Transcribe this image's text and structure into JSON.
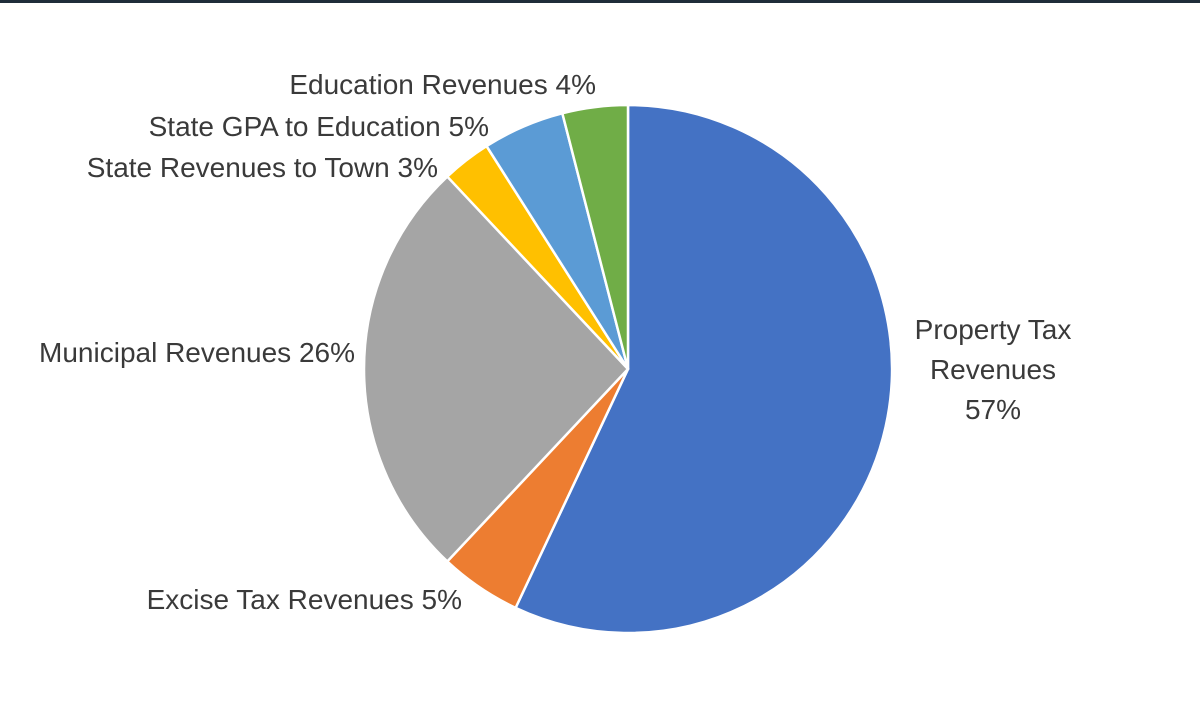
{
  "chart_data": {
    "type": "pie",
    "title": "",
    "legend": "none",
    "start_angle_deg": 0,
    "direction": "clockwise",
    "slices": [
      {
        "name": "Property Tax Revenues",
        "value": 57,
        "label_lines": [
          "Property Tax",
          "Revenues",
          "57%"
        ],
        "color": "#4472C4"
      },
      {
        "name": "Excise Tax Revenues",
        "value": 5,
        "label_lines": [
          "Excise Tax Revenues 5%"
        ],
        "color": "#ED7D31"
      },
      {
        "name": "Municipal Revenues",
        "value": 26,
        "label_lines": [
          "Municipal Revenues 26%"
        ],
        "color": "#A5A5A5"
      },
      {
        "name": "State Revenues to Town",
        "value": 3,
        "label_lines": [
          "State Revenues to Town 3%"
        ],
        "color": "#FFC000"
      },
      {
        "name": "State GPA to Education",
        "value": 5,
        "label_lines": [
          "State GPA to Education 5%"
        ],
        "color": "#5B9BD5"
      },
      {
        "name": "Education Revenues",
        "value": 4,
        "label_lines": [
          "Education Revenues 4%"
        ],
        "color": "#70AD47"
      }
    ]
  }
}
